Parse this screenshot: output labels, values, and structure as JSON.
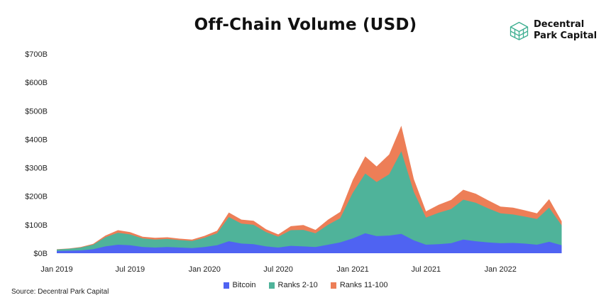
{
  "header": {
    "title": "Off-Chain Volume (USD)",
    "brand_line1": "Decentral",
    "brand_line2": "Park Capital",
    "brand_color": "#3cae90"
  },
  "footer": {
    "source": "Source: Decentral Park Capital"
  },
  "chart_data": {
    "type": "area",
    "stacked": true,
    "title": "Off-Chain Volume (USD)",
    "xlabel": "",
    "ylabel": "",
    "ylim": [
      0,
      700
    ],
    "y_unit": "billion USD",
    "y_ticks": [
      0,
      100,
      200,
      300,
      400,
      500,
      600,
      700
    ],
    "y_tick_labels": [
      "$0B",
      "$100B",
      "$200B",
      "$300B",
      "$400B",
      "$500B",
      "$600B",
      "$700B"
    ],
    "x_ticks": [
      "2019-01-01",
      "2019-07-01",
      "2020-01-01",
      "2020-07-01",
      "2021-01-01",
      "2021-07-01",
      "2022-01-01"
    ],
    "x_tick_labels": [
      "Jan 2019",
      "Jul 2019",
      "Jan 2020",
      "Jul 2020",
      "Jan 2021",
      "Jul 2021",
      "Jan 2022"
    ],
    "x_range": [
      "2019-01-01",
      "2022-06-30"
    ],
    "grid": false,
    "legend_position": "bottom",
    "x": [
      "2019-01-01",
      "2019-02-01",
      "2019-03-01",
      "2019-04-01",
      "2019-05-01",
      "2019-06-01",
      "2019-07-01",
      "2019-08-01",
      "2019-09-01",
      "2019-10-01",
      "2019-11-01",
      "2019-12-01",
      "2020-01-01",
      "2020-02-01",
      "2020-03-01",
      "2020-04-01",
      "2020-05-01",
      "2020-06-01",
      "2020-07-01",
      "2020-08-01",
      "2020-09-01",
      "2020-10-01",
      "2020-11-01",
      "2020-12-01",
      "2021-01-01",
      "2021-02-01",
      "2021-03-01",
      "2021-04-01",
      "2021-05-01",
      "2021-06-01",
      "2021-07-01",
      "2021-08-01",
      "2021-09-01",
      "2021-10-01",
      "2021-11-01",
      "2021-12-01",
      "2022-01-01",
      "2022-02-01",
      "2022-03-01",
      "2022-04-01",
      "2022-05-01",
      "2022-06-01"
    ],
    "series": [
      {
        "name": "Bitcoin",
        "color": "#4f63f2",
        "values": [
          8,
          9,
          10,
          14,
          24,
          30,
          28,
          22,
          20,
          22,
          20,
          18,
          22,
          28,
          42,
          34,
          32,
          24,
          20,
          26,
          24,
          22,
          30,
          38,
          52,
          70,
          60,
          62,
          68,
          45,
          30,
          32,
          35,
          48,
          42,
          38,
          35,
          36,
          34,
          30,
          40,
          28
        ]
      },
      {
        "name": "Ranks 2-10",
        "color": "#4fb39a",
        "values": [
          5,
          7,
          10,
          16,
          32,
          42,
          38,
          30,
          28,
          28,
          26,
          25,
          32,
          42,
          85,
          70,
          68,
          50,
          38,
          55,
          58,
          48,
          70,
          85,
          160,
          210,
          190,
          215,
          290,
          170,
          95,
          110,
          120,
          140,
          135,
          120,
          105,
          100,
          95,
          90,
          120,
          70
        ]
      },
      {
        "name": "Ranks 11-100",
        "color": "#ed7e57",
        "values": [
          1,
          1,
          2,
          3,
          6,
          9,
          8,
          6,
          6,
          6,
          5,
          5,
          7,
          9,
          16,
          14,
          14,
          10,
          8,
          14,
          17,
          12,
          18,
          22,
          45,
          60,
          55,
          70,
          90,
          45,
          22,
          28,
          32,
          35,
          32,
          28,
          24,
          24,
          22,
          20,
          30,
          14
        ]
      }
    ]
  }
}
